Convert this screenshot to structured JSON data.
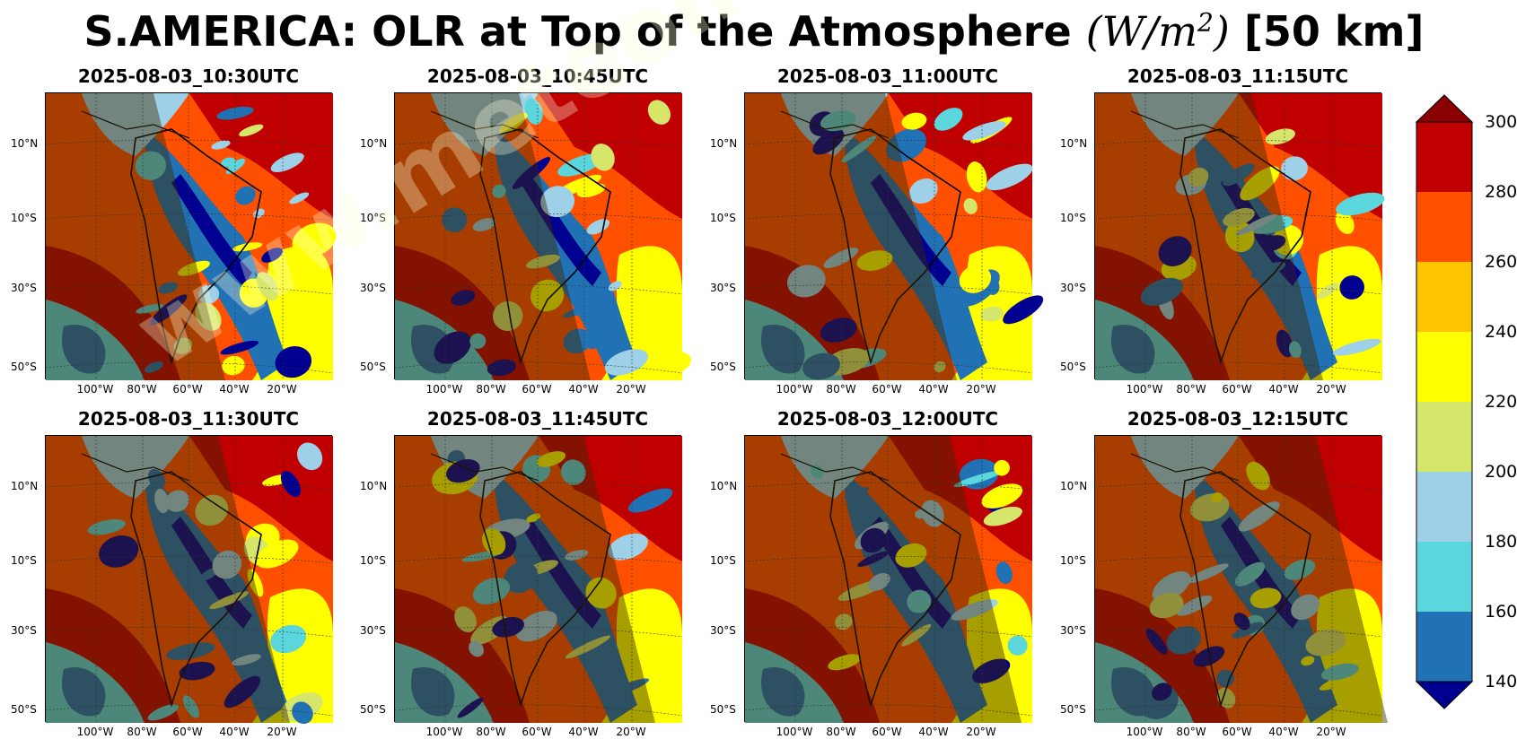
{
  "title": {
    "main": "S.AMERICA: OLR at Top of the Atmosphere ",
    "unit_open": "(",
    "unit_base": "W/m",
    "unit_exp": "2",
    "unit_close": ")",
    "resolution": " [50 km]"
  },
  "panels": [
    {
      "time": "2025-08-03_10:30UTC"
    },
    {
      "time": "2025-08-03_10:45UTC"
    },
    {
      "time": "2025-08-03_11:00UTC"
    },
    {
      "time": "2025-08-03_11:15UTC"
    },
    {
      "time": "2025-08-03_11:30UTC"
    },
    {
      "time": "2025-08-03_11:45UTC"
    },
    {
      "time": "2025-08-03_12:00UTC"
    },
    {
      "time": "2025-08-03_12:15UTC"
    }
  ],
  "lat_labels": [
    "10°N",
    "10°S",
    "30°S",
    "50°S"
  ],
  "lon_labels": [
    "100°W",
    "80°W",
    "60°W",
    "40°W",
    "20°W"
  ],
  "colorbar": {
    "ticks": [
      "300",
      "280",
      "260",
      "240",
      "220",
      "200",
      "180",
      "160",
      "140"
    ],
    "colors": [
      "#8b0000",
      "#c00000",
      "#ff5000",
      "#ffc400",
      "#ffff00",
      "#d6e66a",
      "#9ed1e8",
      "#5ad6dc",
      "#2171b5",
      "#000090"
    ]
  },
  "watermark": "www.meteomanz.com"
}
